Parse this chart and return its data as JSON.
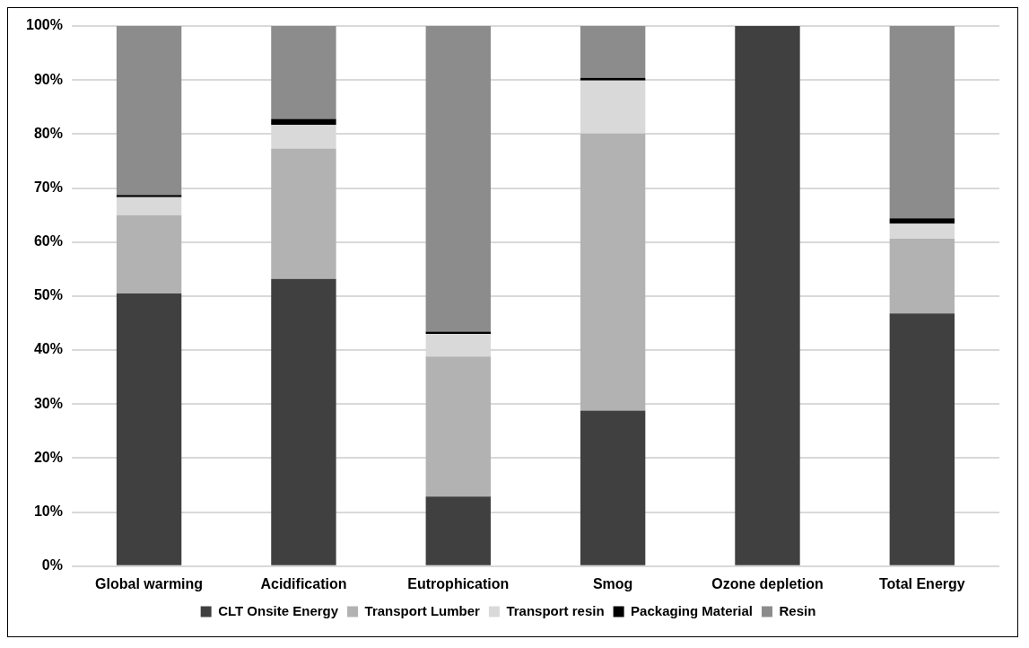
{
  "chart_data": {
    "type": "bar",
    "stacked": true,
    "categories": [
      "Global warming",
      "Acidification",
      "Eutrophication",
      "Smog",
      "Ozone depletion",
      "Total Energy"
    ],
    "series": [
      {
        "name": "CLT Onsite Energy",
        "color": "#404040",
        "values": [
          50.5,
          53.2,
          12.9,
          28.8,
          100,
          46.8
        ]
      },
      {
        "name": "Transport Lumber",
        "color": "#b2b2b2",
        "values": [
          14.5,
          24.1,
          25.9,
          51.3,
          0,
          13.8
        ]
      },
      {
        "name": "Transport resin",
        "color": "#d9d9d9",
        "values": [
          3.3,
          4.4,
          4.2,
          9.8,
          0,
          2.8
        ]
      },
      {
        "name": "Packaging Material",
        "color": "#000000",
        "values": [
          0.4,
          1.1,
          0.4,
          0.5,
          0,
          1.0
        ]
      },
      {
        "name": "Resin",
        "color": "#8c8c8c",
        "values": [
          31.3,
          17.2,
          56.6,
          9.6,
          0,
          35.6
        ]
      }
    ],
    "ylim": [
      0,
      100
    ],
    "yticks": [
      {
        "value": 0,
        "label": "0%"
      },
      {
        "value": 10,
        "label": "10%"
      },
      {
        "value": 20,
        "label": "20%"
      },
      {
        "value": 30,
        "label": "30%"
      },
      {
        "value": 40,
        "label": "40%"
      },
      {
        "value": 50,
        "label": "50%"
      },
      {
        "value": 60,
        "label": "60%"
      },
      {
        "value": 70,
        "label": "70%"
      },
      {
        "value": 80,
        "label": "80%"
      },
      {
        "value": 90,
        "label": "90%"
      },
      {
        "value": 100,
        "label": "100%"
      }
    ],
    "grid": "y",
    "legend": "bottom"
  }
}
